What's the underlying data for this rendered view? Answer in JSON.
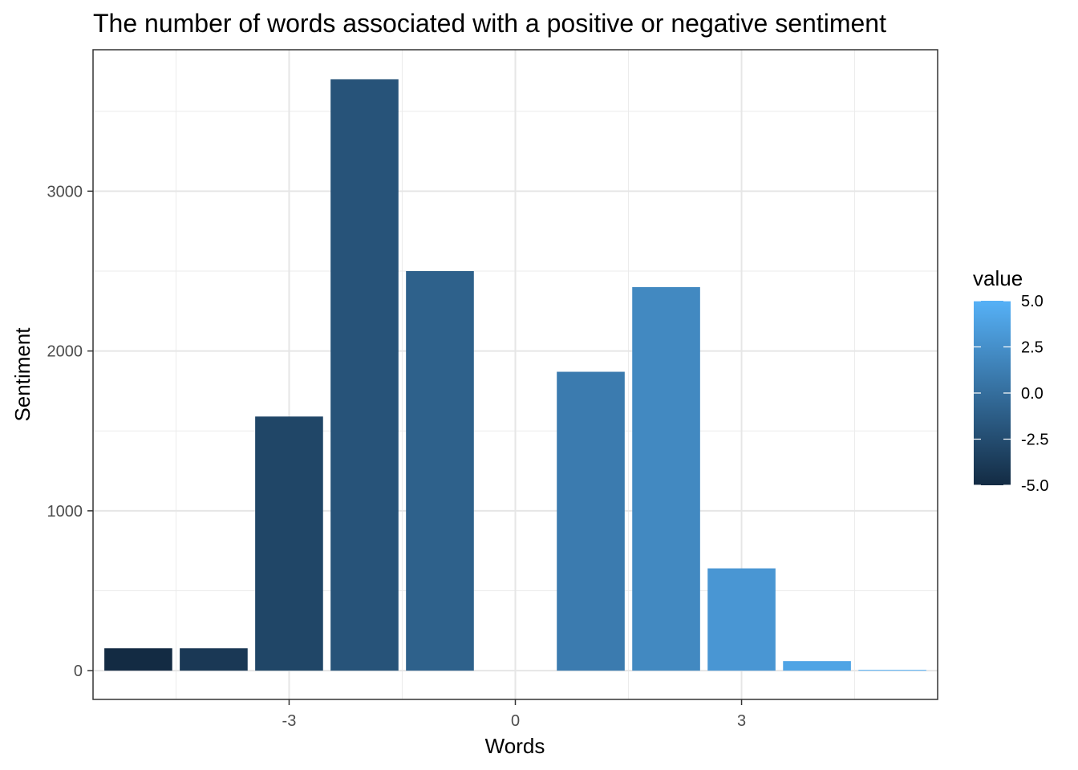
{
  "chart_data": {
    "type": "bar",
    "title": "The number of words associated with a positive or negative sentiment",
    "xlabel": "Words",
    "ylabel": "Sentiment",
    "x": [
      -5,
      -4,
      -3,
      -2,
      -1,
      1,
      2,
      3,
      4,
      5
    ],
    "values": [
      140,
      140,
      1590,
      3700,
      2500,
      1870,
      2400,
      640,
      60,
      5
    ],
    "xlim": [
      -5.6,
      5.6
    ],
    "ylim": [
      -180,
      3885
    ],
    "x_ticks": [
      -3,
      0,
      3
    ],
    "x_tick_labels": [
      "-3",
      "0",
      "3"
    ],
    "y_ticks": [
      0,
      1000,
      2000,
      3000
    ],
    "y_tick_labels": [
      "0",
      "1000",
      "2000",
      "3000"
    ],
    "grid": true,
    "fill_scale": {
      "title": "value",
      "min": -5,
      "max": 5,
      "low_color": "#132B43",
      "high_color": "#56B1F7",
      "breaks": [
        5.0,
        2.5,
        0.0,
        -2.5,
        -5.0
      ],
      "break_labels": [
        "5.0",
        "2.5",
        "0.0",
        "-2.5",
        "-5.0"
      ]
    },
    "legend_position": "right"
  }
}
